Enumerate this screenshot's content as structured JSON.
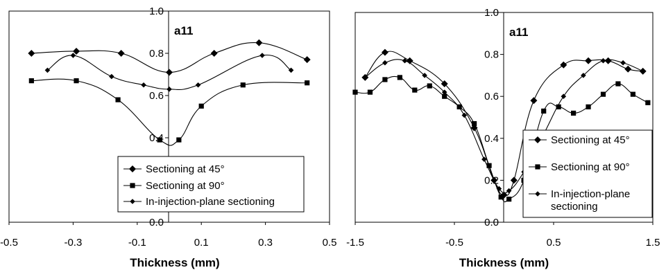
{
  "chart_data": [
    {
      "type": "line",
      "annotation": "a11",
      "xlabel": "Thickness (mm)",
      "xlim": [
        -0.5,
        0.5
      ],
      "ylim": [
        0.0,
        1.0
      ],
      "xticks": [
        "-0.5",
        "-0.3",
        "-0.1",
        "0.1",
        "0.3",
        "0.5"
      ],
      "yticks": [
        "0.0",
        "0.2",
        "0.4",
        "0.6",
        "0.8",
        "1.0"
      ],
      "legend_placement": "bottom-right",
      "series": [
        {
          "name": "Sectioning at 45°",
          "marker": "diamond",
          "x": [
            -0.43,
            -0.29,
            -0.15,
            0.0,
            0.14,
            0.28,
            0.43
          ],
          "y": [
            0.8,
            0.81,
            0.8,
            0.71,
            0.8,
            0.85,
            0.77
          ]
        },
        {
          "name": "Sectioning at 90°",
          "marker": "square",
          "x": [
            -0.43,
            -0.29,
            -0.16,
            -0.03,
            0.03,
            0.1,
            0.23,
            0.43
          ],
          "y": [
            0.67,
            0.67,
            0.58,
            0.39,
            0.39,
            0.55,
            0.65,
            0.66
          ]
        },
        {
          "name": "In-injection-plane sectioning",
          "marker": "small-diamond",
          "x": [
            -0.38,
            -0.3,
            -0.18,
            -0.08,
            0.0,
            0.09,
            0.29,
            0.38
          ],
          "y": [
            0.72,
            0.79,
            0.69,
            0.65,
            0.63,
            0.65,
            0.79,
            0.72
          ]
        }
      ]
    },
    {
      "type": "line",
      "annotation": "a11",
      "xlabel": "Thickness (mm)",
      "xlim": [
        -1.5,
        1.5
      ],
      "ylim": [
        0.0,
        1.0
      ],
      "xticks": [
        "-1.5",
        "-0.5",
        "0.5",
        "1.5"
      ],
      "yticks": [
        "0.0",
        "0.2",
        "0.4",
        "0.6",
        "0.8",
        "1.0"
      ],
      "legend_placement": "bottom-right",
      "series": [
        {
          "name": "Sectioning at 45°",
          "marker": "diamond",
          "x": [
            -1.4,
            -1.2,
            -0.95,
            -0.6,
            -0.3,
            -0.1,
            0.0,
            0.1,
            0.3,
            0.6,
            0.85,
            1.05,
            1.25,
            1.4
          ],
          "y": [
            0.69,
            0.81,
            0.77,
            0.66,
            0.45,
            0.2,
            0.13,
            0.2,
            0.58,
            0.75,
            0.77,
            0.77,
            0.73,
            0.72
          ]
        },
        {
          "name": "Sectioning at 90°",
          "marker": "square",
          "x": [
            -1.5,
            -1.35,
            -1.2,
            -1.05,
            -0.9,
            -0.75,
            -0.6,
            -0.45,
            -0.3,
            -0.15,
            -0.03,
            0.05,
            0.2,
            0.4,
            0.55,
            0.7,
            0.85,
            1.0,
            1.15,
            1.3,
            1.45
          ],
          "y": [
            0.62,
            0.62,
            0.68,
            0.69,
            0.63,
            0.65,
            0.6,
            0.55,
            0.47,
            0.27,
            0.12,
            0.11,
            0.2,
            0.53,
            0.55,
            0.52,
            0.55,
            0.61,
            0.66,
            0.61,
            0.57
          ]
        },
        {
          "name": "In-injection-plane sectioning",
          "marker": "small-diamond",
          "x": [
            -1.4,
            -1.2,
            -1.0,
            -0.8,
            -0.6,
            -0.4,
            -0.2,
            -0.05,
            0.05,
            0.2,
            0.4,
            0.6,
            0.8,
            1.0,
            1.2,
            1.4
          ],
          "y": [
            0.69,
            0.76,
            0.77,
            0.7,
            0.62,
            0.51,
            0.3,
            0.16,
            0.15,
            0.24,
            0.42,
            0.6,
            0.7,
            0.77,
            0.76,
            0.72
          ]
        }
      ]
    }
  ]
}
